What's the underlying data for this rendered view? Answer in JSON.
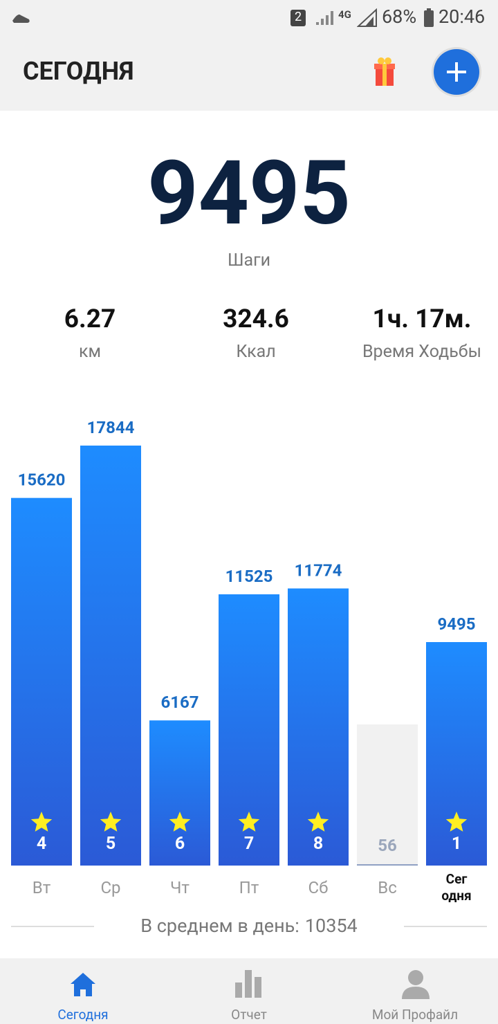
{
  "status": {
    "sim": "2",
    "network": "4G",
    "battery": "68%",
    "time": "20:46"
  },
  "header": {
    "title": "СЕГОДНЯ"
  },
  "steps": {
    "value": 9495,
    "label": "Шаги"
  },
  "stats": [
    {
      "value": 6.27,
      "label": "км"
    },
    {
      "value": 324.6,
      "label": "Ккал"
    },
    {
      "value": "1ч. 17м.",
      "label": "Время Ходьбы"
    }
  ],
  "chart_data": {
    "type": "bar",
    "categories": [
      "Вт",
      "Ср",
      "Чт",
      "Пт",
      "Сб",
      "Вс",
      "Сег\nодня"
    ],
    "values": [
      15620,
      17844,
      6167,
      11525,
      11774,
      56,
      9495
    ],
    "badges": [
      4,
      5,
      6,
      7,
      8,
      null,
      1
    ],
    "color": "#1e6fe6"
  },
  "average": {
    "label": "В среднем в день:",
    "value": 10354
  },
  "nav": [
    "Сегодня",
    "Отчет",
    "Мой Профайл"
  ]
}
